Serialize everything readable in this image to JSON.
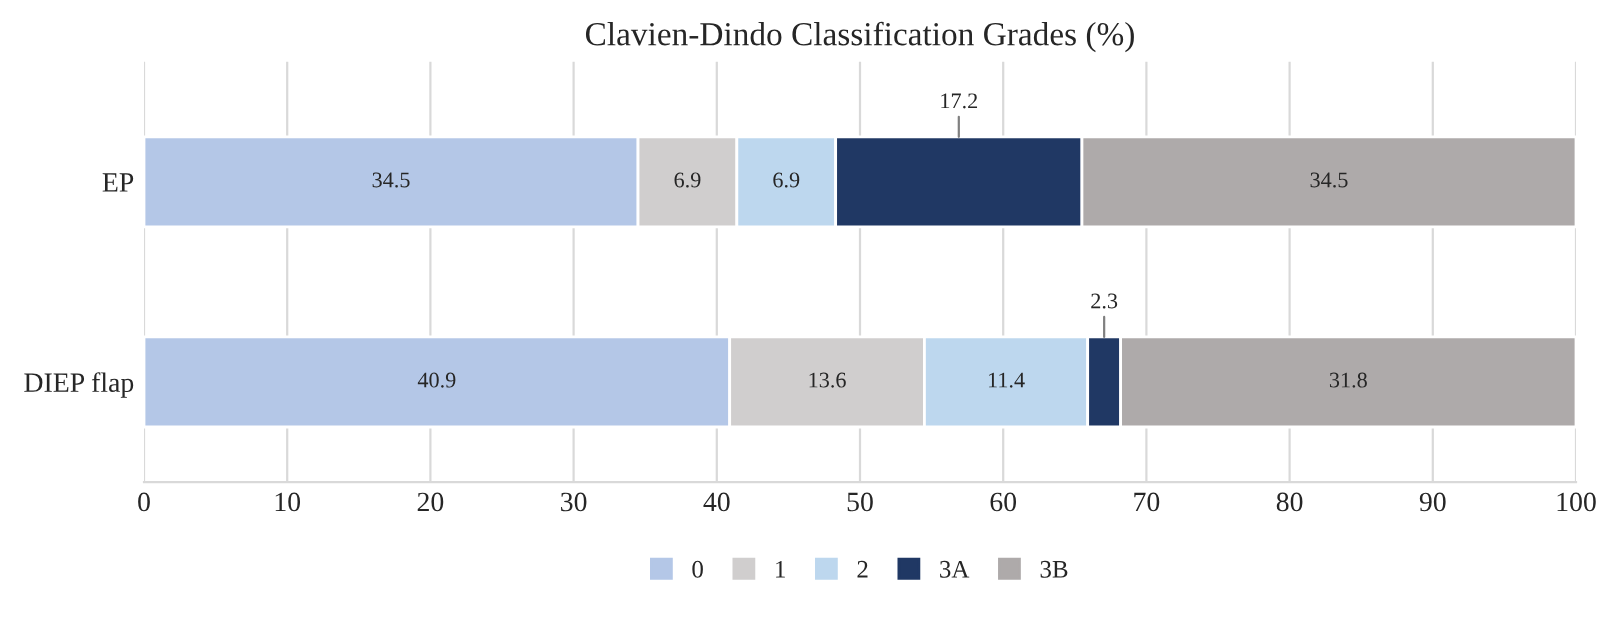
{
  "chart_data": {
    "type": "bar",
    "orientation": "horizontal",
    "stacked": true,
    "title": "Clavien-Dindo Classification Grades (%)",
    "categories": [
      "EP",
      "DIEP flap"
    ],
    "series": [
      {
        "name": "0",
        "color": "#b4c7e7",
        "values": [
          34.5,
          40.9
        ]
      },
      {
        "name": "1",
        "color": "#d0cece",
        "values": [
          6.9,
          13.6
        ]
      },
      {
        "name": "2",
        "color": "#bdd7ee",
        "values": [
          6.9,
          11.4
        ]
      },
      {
        "name": "3A",
        "color": "#203864",
        "values": [
          17.2,
          2.3
        ]
      },
      {
        "name": "3B",
        "color": "#aeaaaa",
        "values": [
          34.5,
          31.8
        ]
      }
    ],
    "xlim": [
      0,
      100
    ],
    "xticks": [
      0,
      10,
      20,
      30,
      40,
      50,
      60,
      70,
      80,
      90,
      100
    ],
    "grid": "x",
    "legend": "bottom",
    "data_labels": true
  }
}
